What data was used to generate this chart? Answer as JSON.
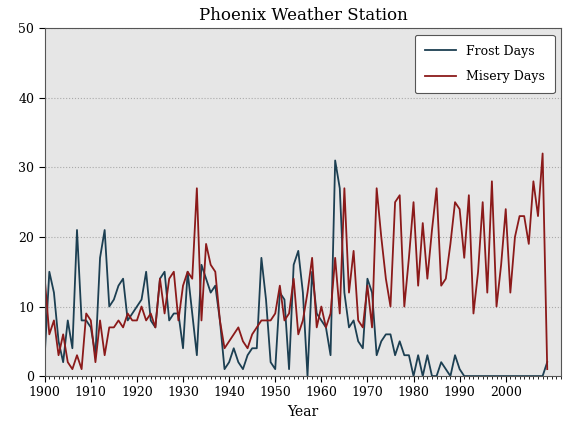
{
  "title": "Phoenix Weather Station",
  "xlabel": "Year",
  "ylabel": "",
  "xlim": [
    1900,
    2012
  ],
  "ylim": [
    0,
    50
  ],
  "yticks": [
    0,
    10,
    20,
    30,
    40,
    50
  ],
  "xticks": [
    1900,
    1910,
    1920,
    1930,
    1940,
    1950,
    1960,
    1970,
    1980,
    1990,
    2000
  ],
  "background_color": "#ffffff",
  "plot_bg_color": "#e6e6e6",
  "frost_color": "#1c3f52",
  "misery_color": "#8b1a1a",
  "frost_label": "Frost Days",
  "misery_label": "Misery Days",
  "years": [
    1900,
    1901,
    1902,
    1903,
    1904,
    1905,
    1906,
    1907,
    1908,
    1909,
    1910,
    1911,
    1912,
    1913,
    1914,
    1915,
    1916,
    1917,
    1918,
    1919,
    1920,
    1921,
    1922,
    1923,
    1924,
    1925,
    1926,
    1927,
    1928,
    1929,
    1930,
    1931,
    1932,
    1933,
    1934,
    1935,
    1936,
    1937,
    1938,
    1939,
    1940,
    1941,
    1942,
    1943,
    1944,
    1945,
    1946,
    1947,
    1948,
    1949,
    1950,
    1951,
    1952,
    1953,
    1954,
    1955,
    1956,
    1957,
    1958,
    1959,
    1960,
    1961,
    1962,
    1963,
    1964,
    1965,
    1966,
    1967,
    1968,
    1969,
    1970,
    1971,
    1972,
    1973,
    1974,
    1975,
    1976,
    1977,
    1978,
    1979,
    1980,
    1981,
    1982,
    1983,
    1984,
    1985,
    1986,
    1987,
    1988,
    1989,
    1990,
    1991,
    1992,
    1993,
    1994,
    1995,
    1996,
    1997,
    1998,
    1999,
    2000,
    2001,
    2002,
    2003,
    2004,
    2005,
    2006,
    2007,
    2008,
    2009
  ],
  "frost_days": [
    3,
    15,
    12,
    5,
    2,
    8,
    4,
    21,
    8,
    8,
    7,
    3,
    17,
    21,
    10,
    11,
    13,
    14,
    8,
    9,
    10,
    11,
    15,
    8,
    7,
    14,
    15,
    8,
    9,
    9,
    4,
    15,
    9,
    3,
    16,
    14,
    12,
    13,
    8,
    1,
    2,
    4,
    2,
    1,
    3,
    4,
    4,
    17,
    11,
    2,
    1,
    12,
    11,
    1,
    16,
    18,
    12,
    0,
    15,
    9,
    8,
    7,
    3,
    31,
    27,
    12,
    7,
    8,
    5,
    4,
    14,
    12,
    3,
    5,
    6,
    6,
    3,
    5,
    3,
    3,
    0,
    3,
    0,
    3,
    0,
    0,
    2,
    1,
    0,
    3,
    1,
    0,
    0,
    0,
    0,
    0,
    0,
    0,
    0,
    0,
    0,
    0,
    0,
    0,
    0,
    0,
    0,
    0,
    0,
    2
  ],
  "misery_days": [
    14,
    6,
    8,
    3,
    6,
    2,
    1,
    3,
    1,
    9,
    8,
    2,
    8,
    3,
    7,
    7,
    8,
    7,
    9,
    8,
    8,
    10,
    8,
    9,
    7,
    14,
    9,
    14,
    15,
    8,
    13,
    15,
    14,
    27,
    8,
    19,
    16,
    15,
    8,
    4,
    5,
    6,
    7,
    5,
    4,
    6,
    7,
    8,
    8,
    8,
    9,
    13,
    8,
    9,
    14,
    6,
    8,
    12,
    17,
    7,
    10,
    7,
    9,
    17,
    9,
    27,
    12,
    18,
    8,
    7,
    13,
    7,
    27,
    20,
    14,
    10,
    25,
    26,
    10,
    17,
    25,
    13,
    22,
    14,
    21,
    27,
    13,
    14,
    19,
    25,
    24,
    17,
    26,
    9,
    15,
    25,
    12,
    28,
    10,
    16,
    24,
    12,
    20,
    23,
    23,
    19,
    28,
    23,
    32,
    1
  ]
}
